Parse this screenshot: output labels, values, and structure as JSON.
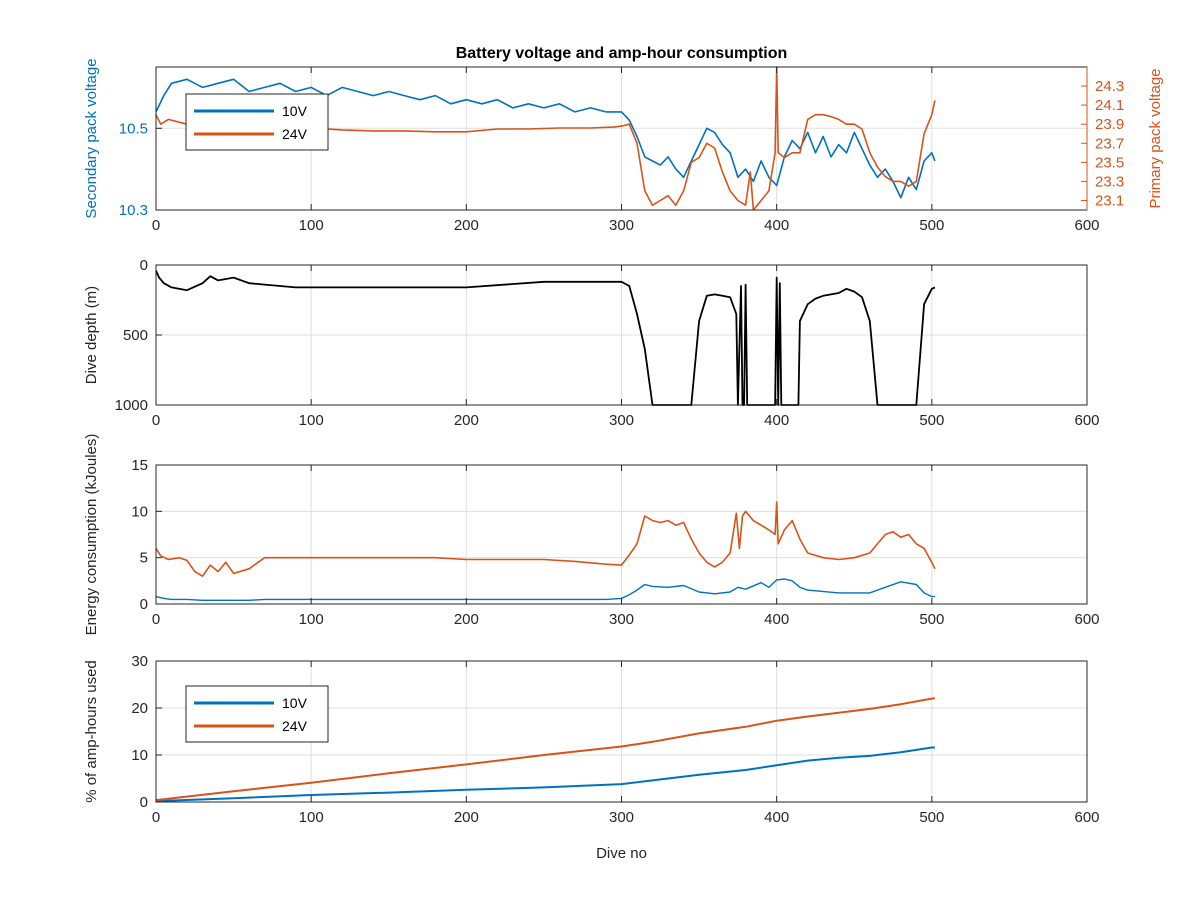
{
  "colors": {
    "blue": "#0072BD",
    "orange": "#D95319",
    "black": "#000000",
    "grid": "#dfdfdf",
    "axis": "#262626"
  },
  "chart_data": [
    {
      "type": "line",
      "title": "Battery voltage and amp-hour consumption",
      "xlabel": "",
      "ylabel": "Secondary pack voltage",
      "ylabel_right": "Primary pack voltage",
      "xlim": [
        0,
        600
      ],
      "ylim": [
        10.3,
        10.65
      ],
      "ylim_right": [
        23.0,
        24.5
      ],
      "xticks": [
        "0",
        "100",
        "200",
        "300",
        "400",
        "500",
        "600"
      ],
      "yticks": [
        "10.3",
        "10.5"
      ],
      "yticks_right": [
        "23.1",
        "23.3",
        "23.5",
        "23.7",
        "23.9",
        "24.1",
        "24.3"
      ],
      "grid": true,
      "legend": {
        "placement": "top-left",
        "entries": [
          "10V",
          "24V"
        ]
      },
      "series": [
        {
          "name": "10V",
          "axis": "left",
          "x": [
            0,
            5,
            10,
            20,
            30,
            40,
            50,
            60,
            70,
            80,
            90,
            100,
            110,
            120,
            130,
            140,
            150,
            160,
            170,
            180,
            190,
            200,
            210,
            220,
            230,
            240,
            250,
            260,
            270,
            280,
            290,
            300,
            305,
            310,
            315,
            320,
            325,
            330,
            335,
            340,
            345,
            350,
            355,
            360,
            365,
            370,
            375,
            380,
            385,
            390,
            395,
            400,
            405,
            410,
            415,
            420,
            425,
            430,
            435,
            440,
            445,
            450,
            455,
            460,
            465,
            470,
            475,
            480,
            485,
            490,
            495,
            500,
            502
          ],
          "values": [
            10.54,
            10.58,
            10.61,
            10.62,
            10.6,
            10.61,
            10.62,
            10.59,
            10.6,
            10.61,
            10.59,
            10.6,
            10.58,
            10.6,
            10.59,
            10.58,
            10.59,
            10.58,
            10.57,
            10.58,
            10.56,
            10.57,
            10.56,
            10.57,
            10.55,
            10.56,
            10.55,
            10.56,
            10.54,
            10.55,
            10.54,
            10.54,
            10.52,
            10.48,
            10.43,
            10.42,
            10.41,
            10.43,
            10.4,
            10.38,
            10.42,
            10.46,
            10.5,
            10.49,
            10.46,
            10.44,
            10.38,
            10.4,
            10.37,
            10.42,
            10.38,
            10.36,
            10.43,
            10.47,
            10.45,
            10.49,
            10.44,
            10.48,
            10.43,
            10.46,
            10.44,
            10.49,
            10.45,
            10.41,
            10.38,
            10.4,
            10.37,
            10.33,
            10.38,
            10.35,
            10.42,
            10.44,
            10.42
          ]
        },
        {
          "name": "24V",
          "axis": "right",
          "x": [
            0,
            3,
            8,
            20,
            40,
            60,
            80,
            100,
            120,
            140,
            160,
            180,
            200,
            220,
            240,
            260,
            280,
            295,
            300,
            305,
            310,
            315,
            320,
            325,
            330,
            335,
            340,
            345,
            350,
            355,
            360,
            365,
            370,
            375,
            380,
            383,
            385,
            390,
            395,
            399,
            400,
            401,
            405,
            410,
            415,
            420,
            425,
            430,
            435,
            440,
            445,
            450,
            455,
            460,
            465,
            470,
            475,
            480,
            485,
            490,
            495,
            500,
            502
          ],
          "values": [
            24.0,
            23.9,
            23.95,
            23.9,
            23.88,
            23.85,
            23.85,
            23.86,
            23.84,
            23.83,
            23.83,
            23.82,
            23.82,
            23.85,
            23.85,
            23.86,
            23.86,
            23.87,
            23.88,
            23.9,
            23.7,
            23.2,
            23.05,
            23.1,
            23.15,
            23.05,
            23.2,
            23.5,
            23.55,
            23.7,
            23.65,
            23.4,
            23.2,
            23.1,
            23.05,
            23.4,
            23.0,
            23.1,
            23.2,
            23.6,
            24.5,
            23.6,
            23.55,
            23.6,
            23.6,
            23.95,
            24.0,
            24.0,
            23.98,
            23.95,
            23.9,
            23.9,
            23.85,
            23.6,
            23.45,
            23.35,
            23.3,
            23.3,
            23.25,
            23.3,
            23.8,
            24.0,
            24.15
          ]
        }
      ]
    },
    {
      "type": "line",
      "title": "",
      "xlabel": "",
      "ylabel": "Dive depth (m)",
      "xlim": [
        0,
        600
      ],
      "ylim": [
        0,
        1000
      ],
      "y_reversed": true,
      "xticks": [
        "0",
        "100",
        "200",
        "300",
        "400",
        "500",
        "600"
      ],
      "yticks": [
        "0",
        "500",
        "1000"
      ],
      "grid": true,
      "series": [
        {
          "x": [
            0,
            2,
            5,
            10,
            20,
            30,
            35,
            40,
            50,
            60,
            70,
            80,
            90,
            100,
            150,
            200,
            250,
            300,
            305,
            310,
            315,
            320,
            345,
            350,
            355,
            360,
            365,
            370,
            374,
            375,
            377,
            378,
            379,
            380,
            381,
            382,
            383,
            384,
            399,
            400,
            401,
            402,
            403,
            404,
            405,
            414,
            415,
            420,
            425,
            430,
            440,
            445,
            450,
            455,
            460,
            465,
            490,
            495,
            500,
            502
          ],
          "values": [
            40,
            90,
            130,
            160,
            180,
            130,
            80,
            110,
            90,
            130,
            140,
            150,
            160,
            160,
            160,
            160,
            120,
            120,
            150,
            350,
            600,
            1000,
            1000,
            400,
            220,
            210,
            220,
            230,
            350,
            1000,
            150,
            1000,
            1000,
            140,
            1000,
            1000,
            1000,
            1000,
            1000,
            90,
            1000,
            130,
            1000,
            1000,
            1000,
            1000,
            400,
            280,
            240,
            220,
            200,
            170,
            190,
            230,
            400,
            1000,
            1000,
            280,
            170,
            160
          ]
        }
      ]
    },
    {
      "type": "line",
      "title": "",
      "xlabel": "",
      "ylabel": "Energy consumption (kJoules)",
      "xlim": [
        0,
        600
      ],
      "ylim": [
        0,
        15
      ],
      "xticks": [
        "0",
        "100",
        "200",
        "300",
        "400",
        "500",
        "600"
      ],
      "yticks": [
        "0",
        "5",
        "10",
        "15"
      ],
      "grid": true,
      "series": [
        {
          "x": [
            0,
            5,
            10,
            20,
            30,
            40,
            50,
            60,
            70,
            80,
            100,
            120,
            140,
            160,
            180,
            200,
            210,
            230,
            250,
            270,
            290,
            300,
            305,
            310,
            315,
            320,
            330,
            340,
            350,
            360,
            370,
            375,
            380,
            390,
            395,
            400,
            405,
            410,
            415,
            420,
            440,
            460,
            470,
            480,
            490,
            495,
            500,
            502
          ],
          "values": [
            0.8,
            0.6,
            0.5,
            0.5,
            0.4,
            0.4,
            0.4,
            0.4,
            0.5,
            0.5,
            0.5,
            0.5,
            0.5,
            0.5,
            0.5,
            0.5,
            0.5,
            0.5,
            0.5,
            0.5,
            0.5,
            0.6,
            1.0,
            1.5,
            2.1,
            1.9,
            1.8,
            2.0,
            1.3,
            1.1,
            1.3,
            1.8,
            1.6,
            2.3,
            1.8,
            2.6,
            2.7,
            2.5,
            1.8,
            1.5,
            1.2,
            1.2,
            1.8,
            2.4,
            2.1,
            1.2,
            0.8,
            0.8
          ]
        },
        {
          "x": [
            0,
            3,
            8,
            15,
            20,
            25,
            30,
            35,
            40,
            45,
            50,
            60,
            70,
            80,
            100,
            120,
            140,
            160,
            180,
            200,
            210,
            230,
            250,
            270,
            290,
            300,
            305,
            310,
            315,
            320,
            325,
            330,
            335,
            340,
            345,
            350,
            355,
            360,
            365,
            370,
            374,
            376,
            378,
            380,
            385,
            390,
            395,
            399,
            400,
            401,
            405,
            410,
            415,
            420,
            430,
            440,
            450,
            460,
            470,
            475,
            480,
            485,
            490,
            495,
            500,
            502
          ],
          "values": [
            6.0,
            5.2,
            4.8,
            5.0,
            4.7,
            3.5,
            3.0,
            4.2,
            3.5,
            4.5,
            3.3,
            3.8,
            5.0,
            5.0,
            5.0,
            5.0,
            5.0,
            5.0,
            5.0,
            4.8,
            4.8,
            4.8,
            4.8,
            4.6,
            4.3,
            4.2,
            5.3,
            6.5,
            9.5,
            9.0,
            8.8,
            9.0,
            8.5,
            8.8,
            7.0,
            5.5,
            4.5,
            4.0,
            4.5,
            5.5,
            9.8,
            6.0,
            9.5,
            10.0,
            9.0,
            8.5,
            8.0,
            7.5,
            11.0,
            6.5,
            8.0,
            9.0,
            7.0,
            5.5,
            5.0,
            4.8,
            5.0,
            5.5,
            7.5,
            7.8,
            7.2,
            7.5,
            6.5,
            6.0,
            4.5,
            3.8
          ]
        }
      ]
    },
    {
      "type": "line",
      "title": "",
      "xlabel": "Dive no",
      "ylabel": "% of amp-hours used",
      "xlim": [
        0,
        600
      ],
      "ylim": [
        0,
        30
      ],
      "xticks": [
        "0",
        "100",
        "200",
        "300",
        "400",
        "500",
        "600"
      ],
      "yticks": [
        "0",
        "10",
        "20",
        "30"
      ],
      "grid": true,
      "legend": {
        "placement": "top-left",
        "entries": [
          "10V",
          "24V"
        ]
      },
      "series": [
        {
          "name": "10V",
          "x": [
            0,
            50,
            100,
            150,
            200,
            250,
            300,
            320,
            350,
            380,
            400,
            420,
            440,
            460,
            480,
            500,
            502
          ],
          "values": [
            0.2,
            0.8,
            1.5,
            2.0,
            2.6,
            3.1,
            3.8,
            4.6,
            5.8,
            6.8,
            7.8,
            8.8,
            9.4,
            9.8,
            10.6,
            11.6,
            11.6
          ]
        },
        {
          "name": "24V",
          "x": [
            0,
            50,
            100,
            150,
            200,
            250,
            300,
            320,
            350,
            380,
            400,
            420,
            440,
            460,
            480,
            500,
            502
          ],
          "values": [
            0.4,
            2.3,
            4.1,
            6.1,
            8.0,
            10.0,
            11.8,
            12.8,
            14.6,
            16.0,
            17.3,
            18.2,
            19.0,
            19.8,
            20.8,
            22.0,
            22.1
          ]
        }
      ]
    }
  ]
}
